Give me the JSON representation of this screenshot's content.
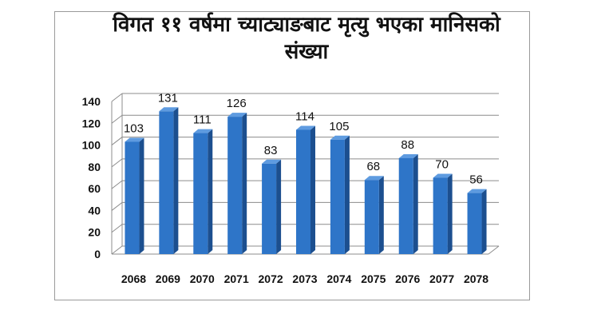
{
  "chart_data": {
    "type": "bar",
    "title_line1": "विगत ११ वर्षमा च्याट्याङबाट मृत्यु भएका मानिसको",
    "title_line2": "संख्या",
    "categories": [
      "2068",
      "2069",
      "2070",
      "2071",
      "2072",
      "2073",
      "2074",
      "2075",
      "2076",
      "2077",
      "2078"
    ],
    "values": [
      103,
      131,
      111,
      126,
      83,
      114,
      105,
      68,
      88,
      70,
      56
    ],
    "ylim": [
      0,
      140
    ],
    "yticks": [
      0,
      20,
      40,
      60,
      80,
      100,
      120,
      140
    ],
    "grid": true,
    "legend": "none",
    "bar_color": "#2e75c8"
  }
}
